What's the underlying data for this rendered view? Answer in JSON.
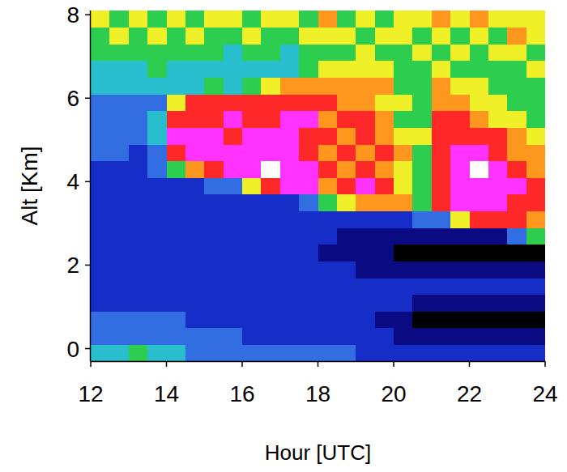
{
  "chart_data": {
    "type": "heatmap",
    "xlabel": "Hour [UTC]",
    "ylabel": "Alt [Km]",
    "xlim": [
      12,
      24
    ],
    "ylim": [
      -0.3,
      8.1
    ],
    "xticks": [
      12,
      14,
      16,
      18,
      20,
      22,
      24
    ],
    "yticks": [
      0,
      2,
      4,
      6,
      8
    ],
    "zlim": [
      0,
      10
    ],
    "x": [
      12,
      12.5,
      13,
      13.5,
      14,
      14.5,
      15,
      15.5,
      16,
      16.5,
      17,
      17.5,
      18,
      18.5,
      19,
      19.5,
      20,
      20.5,
      21,
      21.5,
      22,
      22.5,
      23,
      23.5,
      24
    ],
    "y": [
      -0.3,
      0.1,
      0.5,
      0.9,
      1.3,
      1.7,
      2.1,
      2.5,
      2.9,
      3.3,
      3.7,
      4.1,
      4.5,
      4.9,
      5.3,
      5.7,
      6.1,
      6.5,
      6.9,
      7.3,
      7.7,
      8.1
    ],
    "cells": [
      [
        4,
        4,
        5,
        4,
        4,
        3,
        3,
        3,
        3,
        3,
        3,
        3,
        3,
        3,
        2,
        2,
        2,
        2,
        2,
        2,
        2,
        2,
        2,
        2
      ],
      [
        3,
        3,
        3,
        3,
        3,
        3,
        3,
        3,
        2,
        2,
        2,
        2,
        2,
        2,
        2,
        2,
        1,
        1,
        1,
        1,
        1,
        1,
        1,
        1
      ],
      [
        3,
        3,
        3,
        3,
        3,
        2,
        2,
        2,
        2,
        2,
        2,
        2,
        2,
        2,
        2,
        1,
        1,
        0,
        0,
        0,
        0,
        0,
        0,
        0
      ],
      [
        2,
        2,
        2,
        2,
        2,
        2,
        2,
        2,
        2,
        2,
        2,
        2,
        2,
        2,
        2,
        2,
        2,
        1,
        1,
        1,
        1,
        1,
        1,
        1
      ],
      [
        2,
        2,
        2,
        2,
        2,
        2,
        2,
        2,
        2,
        2,
        2,
        2,
        2,
        2,
        2,
        2,
        2,
        2,
        2,
        2,
        2,
        2,
        2,
        2
      ],
      [
        2,
        2,
        2,
        2,
        2,
        2,
        2,
        2,
        2,
        2,
        2,
        2,
        2,
        2,
        1,
        1,
        1,
        1,
        1,
        1,
        1,
        1,
        1,
        1
      ],
      [
        2,
        2,
        2,
        2,
        2,
        2,
        2,
        2,
        2,
        2,
        2,
        2,
        1,
        1,
        1,
        1,
        0,
        0,
        0,
        0,
        0,
        0,
        0,
        0
      ],
      [
        2,
        2,
        2,
        2,
        2,
        2,
        2,
        2,
        2,
        2,
        2,
        2,
        2,
        1,
        1,
        1,
        1,
        1,
        1,
        1,
        1,
        1,
        3,
        5
      ],
      [
        2,
        2,
        2,
        2,
        2,
        2,
        2,
        2,
        2,
        2,
        2,
        2,
        2,
        2,
        2,
        2,
        2,
        3,
        3,
        6,
        8,
        8,
        8,
        7
      ],
      [
        2,
        2,
        2,
        2,
        2,
        2,
        2,
        2,
        2,
        2,
        2,
        3,
        5,
        6,
        7,
        7,
        7,
        5,
        8,
        9,
        9,
        9,
        8,
        8
      ],
      [
        2,
        2,
        2,
        2,
        2,
        2,
        3,
        3,
        6,
        8,
        9,
        9,
        7,
        8,
        9,
        8,
        6,
        5,
        8,
        9,
        9,
        9,
        9,
        8
      ],
      [
        2,
        2,
        2,
        3,
        5,
        7,
        8,
        9,
        9,
        10,
        9,
        9,
        8,
        7,
        8,
        7,
        6,
        5,
        8,
        9,
        10,
        9,
        8,
        7
      ],
      [
        3,
        3,
        2,
        3,
        8,
        9,
        9,
        9,
        9,
        9,
        9,
        8,
        7,
        8,
        7,
        8,
        7,
        5,
        8,
        9,
        9,
        8,
        7,
        7
      ],
      [
        3,
        3,
        3,
        4,
        9,
        9,
        9,
        8,
        9,
        9,
        9,
        8,
        8,
        7,
        8,
        7,
        6,
        6,
        8,
        8,
        8,
        8,
        7,
        6
      ],
      [
        3,
        3,
        3,
        4,
        8,
        8,
        8,
        9,
        8,
        8,
        9,
        9,
        7,
        8,
        8,
        7,
        5,
        5,
        8,
        8,
        7,
        6,
        6,
        5
      ],
      [
        3,
        3,
        3,
        3,
        6,
        8,
        8,
        8,
        8,
        8,
        8,
        8,
        8,
        7,
        7,
        6,
        6,
        5,
        7,
        7,
        6,
        6,
        5,
        5
      ],
      [
        4,
        4,
        4,
        4,
        4,
        4,
        5,
        4,
        5,
        6,
        7,
        7,
        7,
        7,
        7,
        7,
        5,
        5,
        7,
        6,
        6,
        5,
        5,
        5
      ],
      [
        4,
        4,
        4,
        5,
        4,
        4,
        4,
        4,
        4,
        4,
        4,
        5,
        6,
        6,
        6,
        6,
        5,
        5,
        6,
        5,
        5,
        5,
        5,
        6
      ],
      [
        5,
        5,
        5,
        5,
        5,
        5,
        5,
        4,
        5,
        5,
        4,
        5,
        5,
        5,
        6,
        5,
        5,
        6,
        5,
        6,
        5,
        6,
        6,
        5
      ],
      [
        5,
        6,
        5,
        6,
        5,
        6,
        5,
        5,
        6,
        5,
        5,
        6,
        6,
        6,
        5,
        6,
        6,
        5,
        6,
        5,
        6,
        5,
        7,
        6
      ],
      [
        6,
        5,
        6,
        5,
        6,
        5,
        6,
        6,
        5,
        6,
        6,
        5,
        7,
        5,
        6,
        5,
        6,
        6,
        7,
        6,
        7,
        6,
        6,
        6
      ]
    ]
  }
}
